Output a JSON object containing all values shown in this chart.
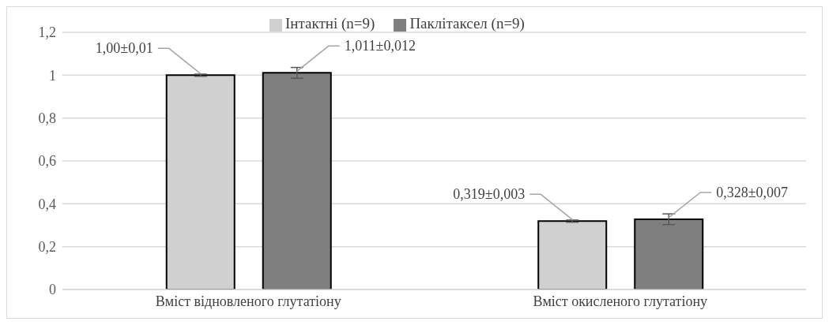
{
  "chart_data": {
    "type": "bar",
    "categories": [
      "Вміст відновленого глутатіону",
      "Вміст окисленого глутатіону"
    ],
    "series": [
      {
        "name": "Інтактні (n=9)",
        "color": "#d0d0d0",
        "values": [
          1.0,
          0.319
        ],
        "errors": [
          0.005,
          0.005
        ],
        "value_labels": [
          "1,00±0,01",
          "0,319±0,003"
        ]
      },
      {
        "name": "Паклітаксел (n=9)",
        "color": "#7f7f7f",
        "values": [
          1.011,
          0.328
        ],
        "errors": [
          0.025,
          0.025
        ],
        "value_labels": [
          "1,011±0,012",
          "0,328±0,007"
        ]
      }
    ],
    "ylim": [
      0,
      1.2
    ],
    "yticks": [
      {
        "value": 0,
        "label": "0"
      },
      {
        "value": 0.2,
        "label": "0,2"
      },
      {
        "value": 0.4,
        "label": "0,4"
      },
      {
        "value": 0.6,
        "label": "0,6"
      },
      {
        "value": 0.8,
        "label": "0,8"
      },
      {
        "value": 1,
        "label": "1"
      },
      {
        "value": 1.2,
        "label": "1,2"
      }
    ],
    "grid": "y",
    "legend": "top"
  }
}
